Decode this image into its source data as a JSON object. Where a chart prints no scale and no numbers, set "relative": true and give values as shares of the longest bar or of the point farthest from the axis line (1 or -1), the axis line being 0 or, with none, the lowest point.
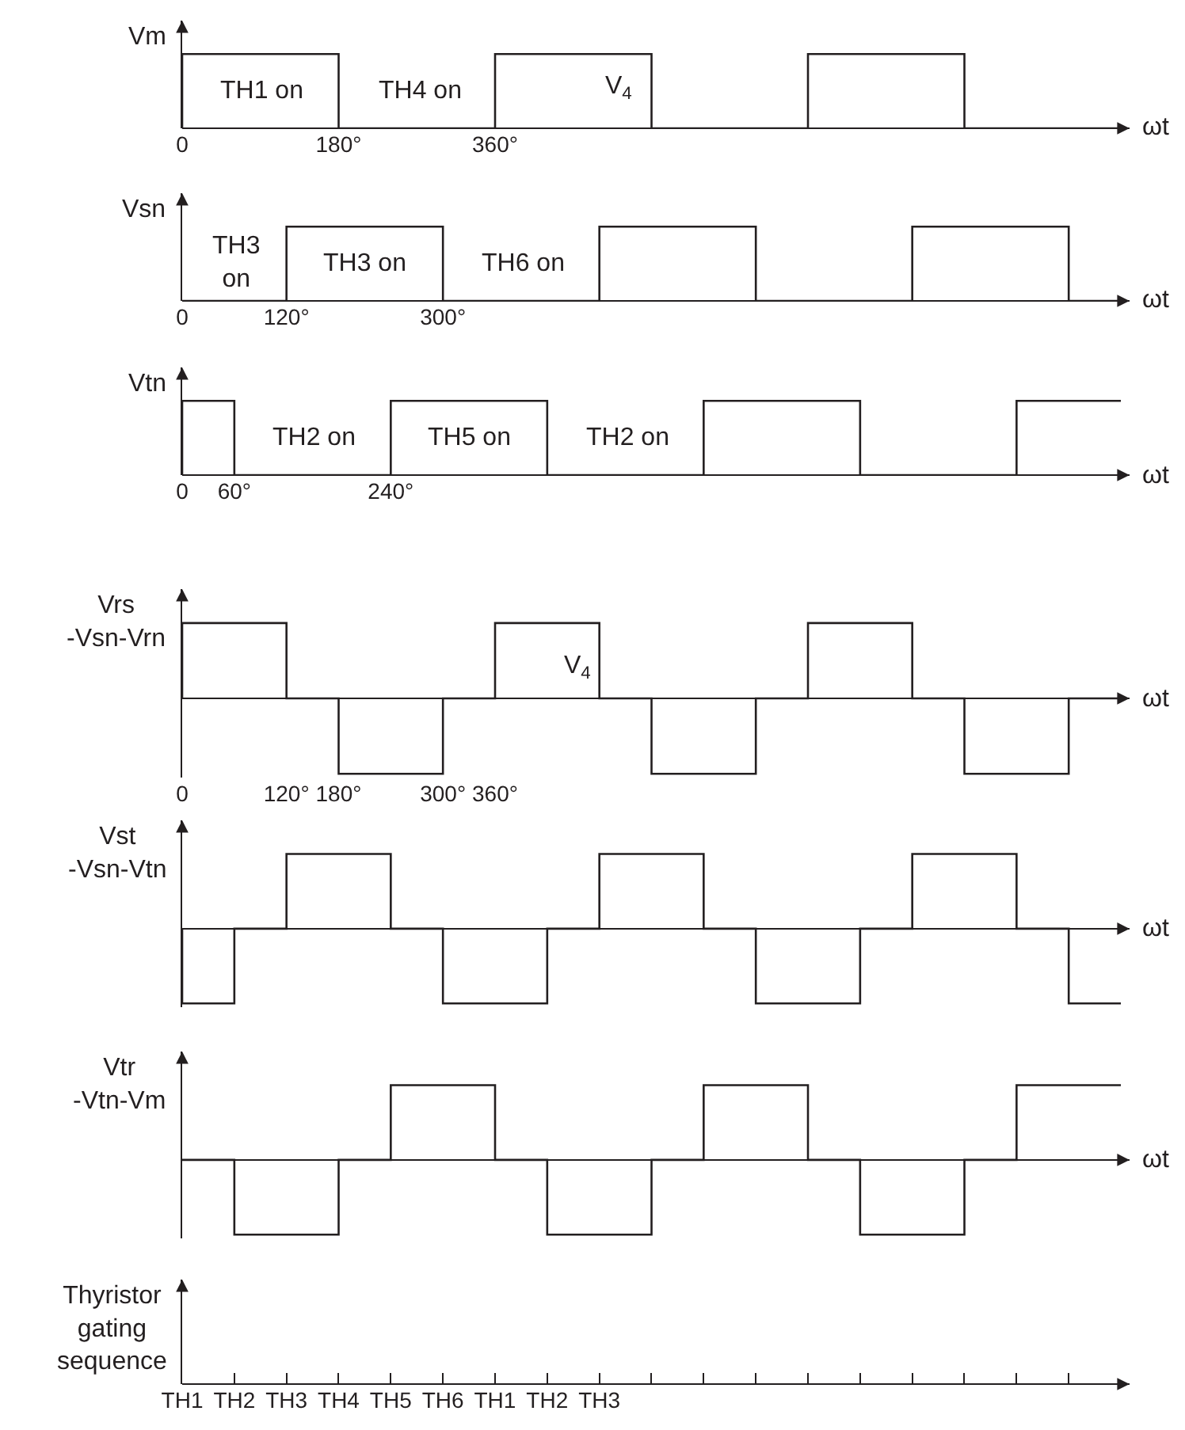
{
  "chart_data": [
    {
      "type": "step",
      "relative": true,
      "color": "#231f20",
      "x": [
        0,
        0,
        180,
        360,
        540,
        720,
        900,
        1080
      ],
      "values": [
        0,
        1,
        0,
        1,
        0,
        1,
        0,
        0
      ],
      "xlim": [
        0,
        1090
      ],
      "xticks": [
        {
          "value": 0,
          "label": "0"
        },
        {
          "value": 180,
          "label": "180°"
        },
        {
          "value": 360,
          "label": "360°"
        }
      ],
      "tick_labels": "x",
      "ylabel": "Vm",
      "xlabel": "ωt",
      "annotations": [
        "TH1 on",
        "TH4 on",
        "V$_{4}$"
      ]
    },
    {
      "type": "step",
      "relative": true,
      "color": "#231f20",
      "x": [
        0,
        120,
        300,
        480,
        660,
        840,
        1020,
        1080
      ],
      "values": [
        0,
        1,
        0,
        1,
        0,
        1,
        0,
        0
      ],
      "xlim": [
        0,
        1090
      ],
      "xticks": [
        {
          "value": 0,
          "label": "0"
        },
        {
          "value": 120,
          "label": "120°"
        },
        {
          "value": 300,
          "label": "300°"
        }
      ],
      "tick_labels": "x",
      "ylabel": "Vsn",
      "xlabel": "ωt",
      "annotations": [
        "TH3\non",
        "TH3 on",
        "TH6 on"
      ]
    },
    {
      "type": "step",
      "relative": true,
      "color": "#231f20",
      "x": [
        0,
        0,
        60,
        240,
        420,
        600,
        780,
        960,
        1080
      ],
      "values": [
        0,
        1,
        0,
        1,
        0,
        1,
        0,
        1,
        1
      ],
      "xlim": [
        0,
        1090
      ],
      "xticks": [
        {
          "value": 0,
          "label": "0"
        },
        {
          "value": 60,
          "label": "60°"
        },
        {
          "value": 240,
          "label": "240°"
        }
      ],
      "tick_labels": "x",
      "ylabel": "Vtn",
      "xlabel": "ωt",
      "annotations": [
        "TH2 on",
        "TH5 on",
        "TH2 on"
      ]
    },
    {
      "type": "step",
      "relative": true,
      "color": "#231f20",
      "x": [
        0,
        0,
        120,
        180,
        300,
        360,
        480,
        540,
        660,
        720,
        840,
        900,
        1020,
        1080
      ],
      "values": [
        0,
        1,
        0,
        -1,
        0,
        1,
        0,
        -1,
        0,
        1,
        0,
        -1,
        0,
        0
      ],
      "xlim": [
        0,
        1090
      ],
      "xticks": [
        {
          "value": 0,
          "label": "0"
        },
        {
          "value": 120,
          "label": "120°"
        },
        {
          "value": 180,
          "label": "180°"
        },
        {
          "value": 300,
          "label": "300°"
        },
        {
          "value": 360,
          "label": "360°"
        }
      ],
      "tick_labels": "x",
      "ylabel": "Vrs\n-Vsn-Vrn",
      "xlabel": "ωt",
      "annotations": [
        "V$_{4}$"
      ]
    },
    {
      "type": "step",
      "relative": true,
      "color": "#231f20",
      "x": [
        0,
        0,
        60,
        120,
        240,
        300,
        420,
        480,
        600,
        660,
        780,
        840,
        960,
        1020,
        1080
      ],
      "values": [
        0,
        -1,
        0,
        1,
        0,
        -1,
        0,
        1,
        0,
        -1,
        0,
        1,
        0,
        -1,
        -1
      ],
      "xlim": [
        0,
        1090
      ],
      "tick_labels": false,
      "ylabel": "Vst\n-Vsn-Vtn",
      "xlabel": "ωt"
    },
    {
      "type": "step",
      "relative": true,
      "color": "#231f20",
      "x": [
        0,
        60,
        180,
        240,
        360,
        420,
        540,
        600,
        720,
        780,
        900,
        960,
        1080
      ],
      "values": [
        0,
        -1,
        0,
        1,
        0,
        -1,
        0,
        1,
        0,
        -1,
        0,
        1,
        1
      ],
      "xlim": [
        0,
        1090
      ],
      "tick_labels": false,
      "ylabel": "Vtr\n-Vtn-Vm",
      "xlabel": "ωt"
    },
    {
      "type": "other",
      "categories": [
        "TH1",
        "TH2",
        "TH3",
        "TH4",
        "TH5",
        "TH6",
        "TH1",
        "TH2",
        "TH3",
        null,
        null,
        null,
        null,
        null,
        null,
        null,
        null,
        null
      ],
      "ylabel": "Thyristor\ngating\nsequence"
    }
  ]
}
